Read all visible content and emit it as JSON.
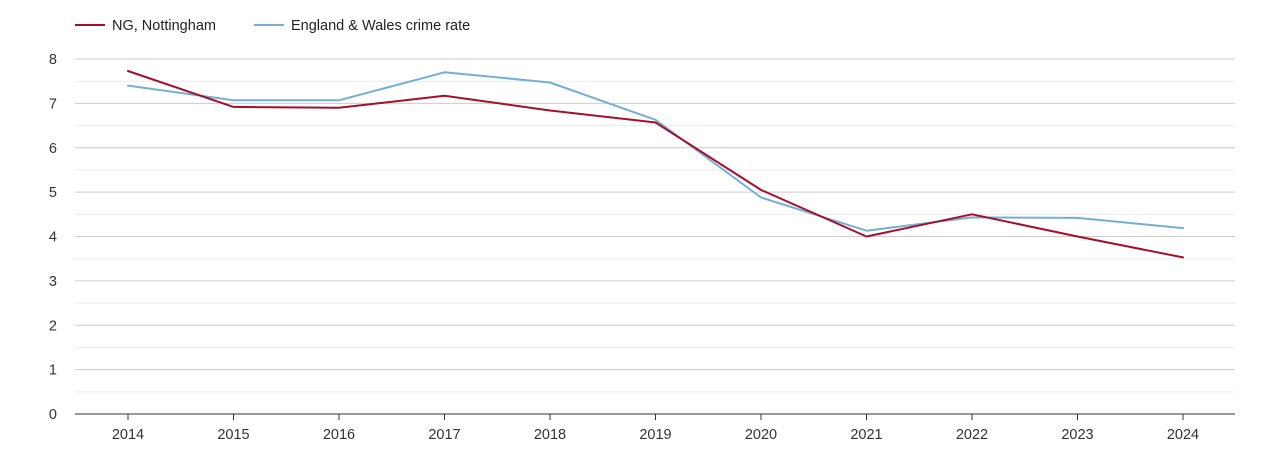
{
  "chart_data": {
    "type": "line",
    "title": "",
    "xlabel": "",
    "ylabel": "",
    "x": [
      "2014",
      "2015",
      "2016",
      "2017",
      "2018",
      "2019",
      "2020",
      "2021",
      "2022",
      "2023",
      "2024"
    ],
    "ylim": [
      0,
      8
    ],
    "yticks": [
      "0",
      "1",
      "2",
      "3",
      "4",
      "5",
      "6",
      "7",
      "8"
    ],
    "grid": true,
    "legend_position": "top-left",
    "series": [
      {
        "name": "NG, Nottingham",
        "color": "#a50f2d",
        "values": [
          7.73,
          6.92,
          6.9,
          7.17,
          6.84,
          6.57,
          5.05,
          4.0,
          4.5,
          4.0,
          3.53
        ]
      },
      {
        "name": "England & Wales crime rate",
        "color": "#74afd2",
        "values": [
          7.4,
          7.07,
          7.07,
          7.7,
          7.47,
          6.63,
          4.88,
          4.13,
          4.43,
          4.42,
          4.19
        ]
      }
    ]
  }
}
